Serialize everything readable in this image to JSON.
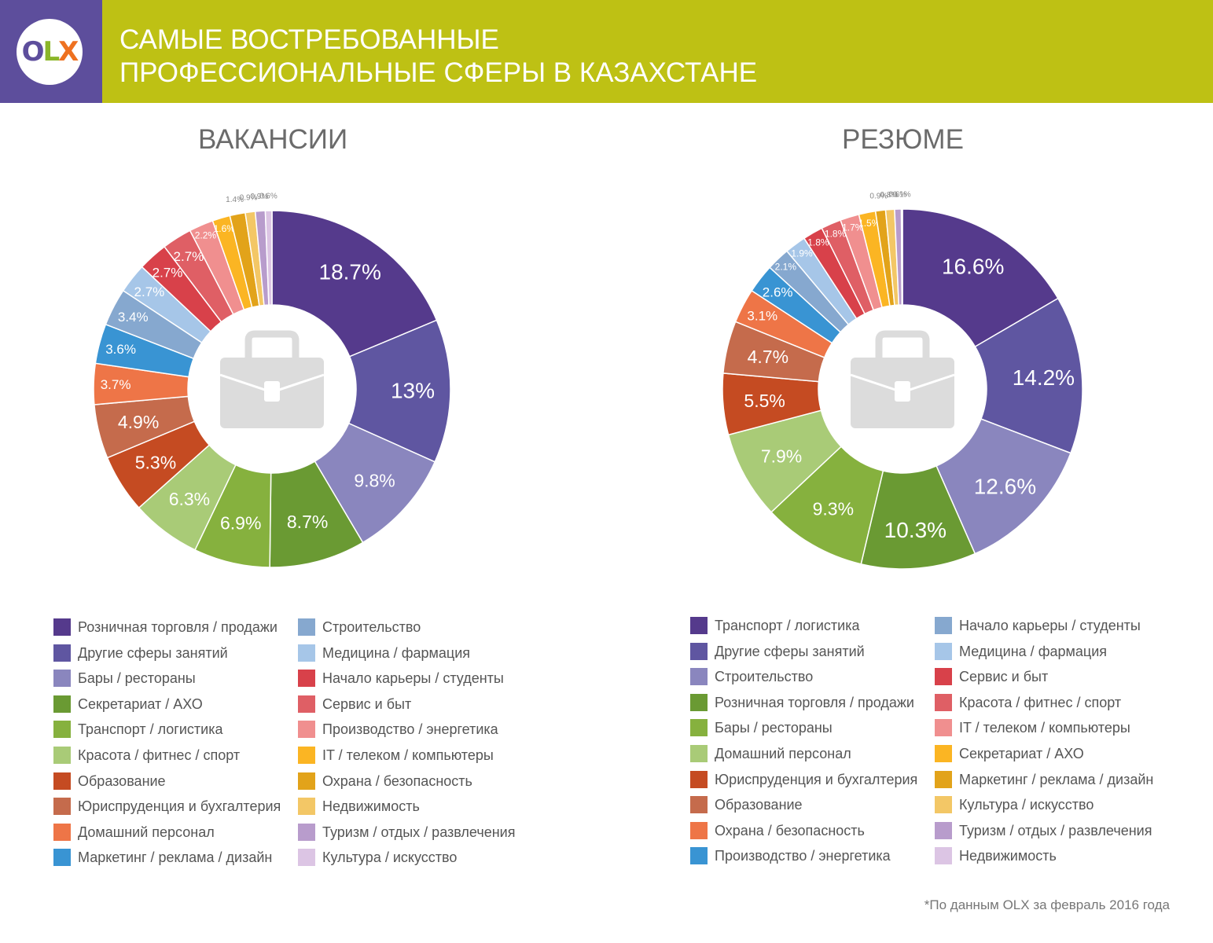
{
  "header": {
    "logo": {
      "o": "O",
      "l": "L",
      "x": "X"
    },
    "title_line1": "САМЫЕ ВОСТРЕБОВАННЫЕ",
    "title_line2": "ПРОФЕССИОНАЛЬНЫЕ СФЕРЫ В КАЗАХСТАНЕ",
    "colors": {
      "bar": "#bec114",
      "logo_bg": "#5d4e9c"
    }
  },
  "center_icon": "briefcase-icon",
  "footnote": "*По данным OLX за февраль 2016 года",
  "chart_data": [
    {
      "type": "pie",
      "donut": true,
      "title": "ВАКАНСИИ",
      "unit": "%",
      "slices": [
        {
          "label": "Розничная торговля / продажи",
          "value": 18.7,
          "text": "18.7%",
          "color": "#553a8c"
        },
        {
          "label": "Другие сферы занятий",
          "value": 13,
          "text": "13%",
          "color": "#5f56a1"
        },
        {
          "label": "Бары / рестораны",
          "value": 9.8,
          "text": "9.8%",
          "color": "#8a86be"
        },
        {
          "label": "Секретариат / АХО",
          "value": 8.7,
          "text": "8.7%",
          "color": "#6a9a33"
        },
        {
          "label": "Транспорт / логистика",
          "value": 6.9,
          "text": "6.9%",
          "color": "#86b13e"
        },
        {
          "label": "Красота / фитнес / спорт",
          "value": 6.3,
          "text": "6.3%",
          "color": "#a9cb77"
        },
        {
          "label": "Образование",
          "value": 5.3,
          "text": "5.3%",
          "color": "#c54b22"
        },
        {
          "label": "Юриспруденция и бухгалтерия",
          "value": 4.9,
          "text": "4.9%",
          "color": "#c56b4c"
        },
        {
          "label": "Домашний персонал",
          "value": 3.7,
          "text": "3.7%",
          "color": "#ee7547"
        },
        {
          "label": "Маркетинг / реклама / дизайн",
          "value": 3.6,
          "text": "3.6%",
          "color": "#3994d3"
        },
        {
          "label": "Строительство",
          "value": 3.4,
          "text": "3.4%",
          "color": "#86a8cf"
        },
        {
          "label": "Медицина / фармация",
          "value": 2.7,
          "text": "2.7%",
          "color": "#a6c6e8"
        },
        {
          "label": "Начало карьеры / студенты",
          "value": 2.7,
          "text": "2.7%",
          "color": "#d8414a"
        },
        {
          "label": "Сервис и быт",
          "value": 2.7,
          "text": "2.7%",
          "color": "#df5f65"
        },
        {
          "label": "Производство / энергетика",
          "value": 2.2,
          "text": "2.2%",
          "color": "#f08f8f"
        },
        {
          "label": "IT / телеком / компьютеры",
          "value": 1.6,
          "text": "1.6%",
          "color": "#fbb523"
        },
        {
          "label": "Охрана / безопасность",
          "value": 1.4,
          "text": "1.4%",
          "color": "#e2a31a"
        },
        {
          "label": "Недвижимость",
          "value": 0.9,
          "text": "0.9%",
          "color": "#f3c766"
        },
        {
          "label": "Туризм / отдых / развлечения",
          "value": 0.9,
          "text": "0.9%",
          "color": "#b89ccc"
        },
        {
          "label": "Культура / искусство",
          "value": 0.6,
          "text": "0.6%",
          "color": "#dcc5e4"
        }
      ]
    },
    {
      "type": "pie",
      "donut": true,
      "title": "РЕЗЮМЕ",
      "unit": "%",
      "slices": [
        {
          "label": "Транспорт / логистика",
          "value": 16.6,
          "text": "16.6%",
          "color": "#553a8c"
        },
        {
          "label": "Другие сферы занятий",
          "value": 14.2,
          "text": "14.2%",
          "color": "#5f56a1"
        },
        {
          "label": "Строительство",
          "value": 12.6,
          "text": "12.6%",
          "color": "#8a86be"
        },
        {
          "label": "Розничная торговля / продажи",
          "value": 10.3,
          "text": "10.3%",
          "color": "#6a9a33"
        },
        {
          "label": "Бары / рестораны",
          "value": 9.3,
          "text": "9.3%",
          "color": "#86b13e"
        },
        {
          "label": "Домашний персонал",
          "value": 7.9,
          "text": "7.9%",
          "color": "#a9cb77"
        },
        {
          "label": "Юриспруденция и бухгалтерия",
          "value": 5.5,
          "text": "5.5%",
          "color": "#c54b22"
        },
        {
          "label": "Образование",
          "value": 4.7,
          "text": "4.7%",
          "color": "#c56b4c"
        },
        {
          "label": "Охрана / безопасность",
          "value": 3.1,
          "text": "3.1%",
          "color": "#ee7547"
        },
        {
          "label": "Производство / энергетика",
          "value": 2.6,
          "text": "2.6%",
          "color": "#3994d3"
        },
        {
          "label": "Начало карьеры / студенты",
          "value": 2.1,
          "text": "2.1%",
          "color": "#86a8cf"
        },
        {
          "label": "Медицина / фармация",
          "value": 1.9,
          "text": "1.9%",
          "color": "#a6c6e8"
        },
        {
          "label": "Сервис и быт",
          "value": 1.8,
          "text": "1.8%",
          "color": "#d8414a"
        },
        {
          "label": "Красота / фитнес / спорт",
          "value": 1.8,
          "text": "1.8%",
          "color": "#df5f65"
        },
        {
          "label": "IT / телеком / компьютеры",
          "value": 1.7,
          "text": "1.7%",
          "color": "#f08f8f"
        },
        {
          "label": "Секретариат / АХО",
          "value": 1.5,
          "text": "1.5%",
          "color": "#fbb523"
        },
        {
          "label": "Маркетинг / реклама / дизайн",
          "value": 0.9,
          "text": "0.9%",
          "color": "#e2a31a"
        },
        {
          "label": "Культура / искусство",
          "value": 0.8,
          "text": "0.8%",
          "color": "#f3c766"
        },
        {
          "label": "Туризм / отдых / развлечения",
          "value": 0.6,
          "text": "0.6%",
          "color": "#b89ccc"
        },
        {
          "label": "Недвижимость",
          "value": 0.1,
          "text": "0.1%",
          "color": "#dcc5e4"
        }
      ]
    }
  ]
}
